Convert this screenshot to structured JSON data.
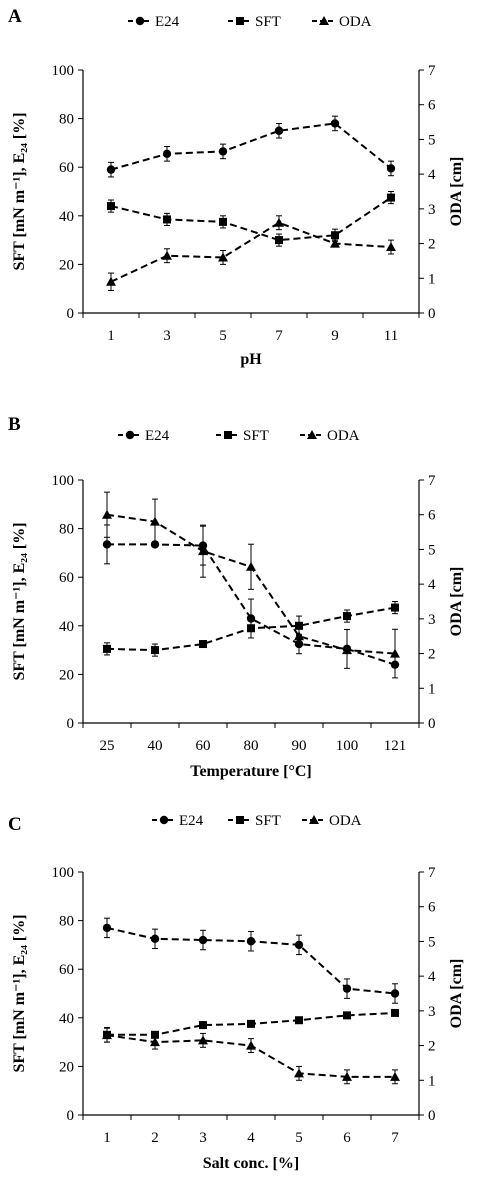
{
  "chart_data": [
    {
      "type": "line",
      "panel": "A",
      "categories": [
        "1",
        "3",
        "5",
        "7",
        "9",
        "11"
      ],
      "xlabel": "pH",
      "ylabel": "SFT [mN m⁻¹], E₂₄ [%]",
      "y2label": "ODA [cm]",
      "ylim": [
        0,
        100
      ],
      "y2lim": [
        0,
        7
      ],
      "yticks": [
        "0",
        "20",
        "40",
        "60",
        "80",
        "100"
      ],
      "y2ticks": [
        "0",
        "1",
        "2",
        "3",
        "4",
        "5",
        "6",
        "7"
      ],
      "series": [
        {
          "name": "E24",
          "marker": "circle",
          "axis": "left",
          "values": [
            59,
            65.5,
            66.5,
            75,
            78,
            59.5
          ],
          "errors": [
            3,
            3,
            3,
            3,
            3,
            3
          ]
        },
        {
          "name": "SFT",
          "marker": "square",
          "axis": "left",
          "values": [
            44,
            38.5,
            37.5,
            30,
            32,
            47.5
          ],
          "errors": [
            2.5,
            2.5,
            2.5,
            2.5,
            2.5,
            2.5
          ]
        },
        {
          "name": "ODA",
          "marker": "triangle",
          "axis": "right",
          "values": [
            0.9,
            1.65,
            1.6,
            2.6,
            2.0,
            1.9
          ],
          "errors": [
            0.25,
            0.2,
            0.2,
            0.2,
            0.1,
            0.2
          ]
        }
      ]
    },
    {
      "type": "line",
      "panel": "B",
      "categories": [
        "25",
        "40",
        "60",
        "80",
        "90",
        "100",
        "121"
      ],
      "xlabel": "Temperature [°C]",
      "ylabel": "SFT [mN m⁻¹], E₂₄ [%]",
      "y2label": "ODA [cm]",
      "ylim": [
        0,
        100
      ],
      "y2lim": [
        0,
        7
      ],
      "yticks": [
        "0",
        "20",
        "40",
        "60",
        "80",
        "100"
      ],
      "y2ticks": [
        "0",
        "1",
        "2",
        "3",
        "4",
        "5",
        "6",
        "7"
      ],
      "series": [
        {
          "name": "E24",
          "marker": "circle",
          "axis": "left",
          "values": [
            73.5,
            73.5,
            73,
            43,
            32.5,
            30.5,
            24
          ],
          "errors": [
            8,
            0,
            8,
            8,
            4,
            8,
            0
          ]
        },
        {
          "name": "SFT",
          "marker": "square",
          "axis": "left",
          "values": [
            30.5,
            30,
            32.5,
            39,
            40,
            44,
            47.5
          ],
          "errors": [
            2.5,
            2.5,
            0,
            0,
            4,
            2.5,
            2.5
          ]
        },
        {
          "name": "ODA",
          "marker": "triangle",
          "axis": "right",
          "values": [
            6.0,
            5.8,
            4.95,
            4.5,
            2.5,
            2.1,
            2.0
          ],
          "errors": [
            0.65,
            0.65,
            0.75,
            0.65,
            0,
            0,
            0.7
          ]
        }
      ]
    },
    {
      "type": "line",
      "panel": "C",
      "categories": [
        "1",
        "2",
        "3",
        "4",
        "5",
        "6",
        "7"
      ],
      "xlabel": "Salt conc. [%]",
      "ylabel": "SFT [mN m⁻¹], E₂₄ [%]",
      "y2label": "ODA [cm]",
      "ylim": [
        0,
        100
      ],
      "y2lim": [
        0,
        7
      ],
      "yticks": [
        "0",
        "20",
        "40",
        "60",
        "80",
        "100"
      ],
      "y2ticks": [
        "0",
        "1",
        "2",
        "3",
        "4",
        "5",
        "6",
        "7"
      ],
      "series": [
        {
          "name": "E24",
          "marker": "circle",
          "axis": "left",
          "values": [
            77,
            72.5,
            72,
            71.5,
            70,
            52,
            50
          ],
          "errors": [
            4,
            4,
            4,
            4,
            4,
            4,
            4
          ]
        },
        {
          "name": "SFT",
          "marker": "square",
          "axis": "left",
          "values": [
            33,
            33,
            37,
            37.5,
            39,
            41,
            42
          ],
          "errors": [
            3,
            0,
            0,
            0,
            0,
            0,
            0
          ]
        },
        {
          "name": "ODA",
          "marker": "triangle",
          "axis": "right",
          "values": [
            2.3,
            2.1,
            2.15,
            2.0,
            1.2,
            1.1,
            1.1
          ],
          "errors": [
            0.2,
            0.2,
            0.2,
            0.2,
            0.2,
            0.2,
            0.2
          ]
        }
      ]
    }
  ]
}
